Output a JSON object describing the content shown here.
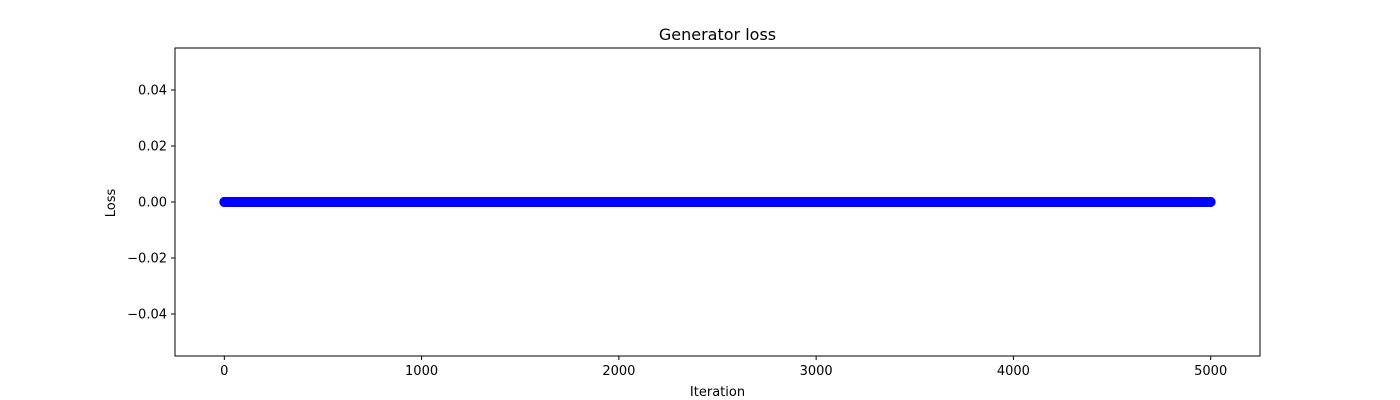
{
  "chart_data": {
    "type": "scatter",
    "title": "Generator loss",
    "xlabel": "Iteration",
    "ylabel": "Loss",
    "xlim": [
      -250,
      5250
    ],
    "ylim": [
      -0.055,
      0.055
    ],
    "x_ticks": [
      0,
      1000,
      2000,
      3000,
      4000,
      5000
    ],
    "x_tick_labels": [
      "0",
      "1000",
      "2000",
      "3000",
      "4000",
      "5000"
    ],
    "y_ticks": [
      0.04,
      0.02,
      0.0,
      -0.02,
      -0.04
    ],
    "y_tick_labels": [
      "0.04",
      "0.02",
      "0.00",
      "−0.02",
      "−0.04"
    ],
    "grid": false,
    "series": [
      {
        "color": "#0000ff",
        "marker": "circle",
        "x_start": 0,
        "x_end": 5000,
        "x_step": 1,
        "y_constant": 0.0
      }
    ]
  }
}
